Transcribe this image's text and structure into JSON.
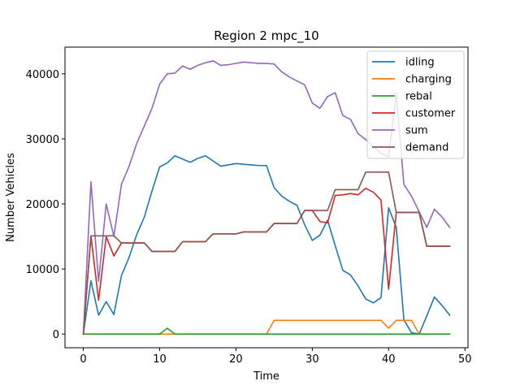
{
  "chart_data": {
    "type": "line",
    "title": "Region 2 mpc_10",
    "xlabel": "Time",
    "ylabel": "Number Vehicles",
    "xlim": [
      -2.4,
      50.4
    ],
    "ylim": [
      -2100,
      44100
    ],
    "xticks": [
      0,
      10,
      20,
      30,
      40,
      50
    ],
    "yticks": [
      0,
      10000,
      20000,
      30000,
      40000
    ],
    "grid": false,
    "legend_position": "top-right",
    "x": [
      0,
      1,
      2,
      3,
      4,
      5,
      6,
      7,
      8,
      9,
      10,
      11,
      12,
      13,
      14,
      15,
      16,
      17,
      18,
      19,
      20,
      21,
      22,
      23,
      24,
      25,
      26,
      27,
      28,
      29,
      30,
      31,
      32,
      33,
      34,
      35,
      36,
      37,
      38,
      39,
      40,
      41,
      42,
      43,
      44,
      45,
      46,
      47,
      48
    ],
    "series": [
      {
        "name": "idling",
        "color": "#1f77b4",
        "values": [
          0,
          8200,
          2900,
          5000,
          3000,
          9000,
          11800,
          15300,
          18000,
          22000,
          25700,
          26300,
          27400,
          26900,
          26400,
          27000,
          27400,
          26600,
          25800,
          26000,
          26200,
          26100,
          26000,
          25900,
          25900,
          22500,
          21200,
          20400,
          19800,
          16800,
          14400,
          15200,
          17500,
          13600,
          9800,
          9100,
          7400,
          5400,
          4800,
          5600,
          19400,
          16400,
          2200,
          200,
          0,
          2800,
          5700,
          4400,
          2900
        ]
      },
      {
        "name": "charging",
        "color": "#ff7f0e",
        "values": [
          0,
          0,
          0,
          0,
          0,
          0,
          0,
          0,
          0,
          0,
          0,
          0,
          0,
          0,
          0,
          0,
          0,
          0,
          0,
          0,
          0,
          0,
          0,
          0,
          0,
          2100,
          2100,
          2100,
          2100,
          2100,
          2100,
          2100,
          2100,
          2100,
          2100,
          2100,
          2100,
          2100,
          2100,
          2100,
          900,
          2100,
          2100,
          2100,
          0,
          0,
          0,
          0,
          0
        ]
      },
      {
        "name": "rebal",
        "color": "#2ca02c",
        "values": [
          0,
          0,
          0,
          0,
          0,
          0,
          0,
          0,
          0,
          0,
          0,
          900,
          0,
          0,
          0,
          0,
          0,
          0,
          0,
          0,
          0,
          0,
          0,
          0,
          0,
          0,
          0,
          0,
          0,
          0,
          0,
          0,
          0,
          0,
          0,
          0,
          0,
          0,
          0,
          0,
          0,
          0,
          0,
          0,
          0,
          0,
          0,
          0,
          0
        ]
      },
      {
        "name": "customer",
        "color": "#d62728",
        "values": [
          0,
          15100,
          5200,
          15000,
          12000,
          14000,
          14000,
          14000,
          14000,
          12700,
          12700,
          12700,
          12700,
          14200,
          14200,
          14200,
          14200,
          15400,
          15400,
          15400,
          15400,
          15700,
          15700,
          15700,
          15700,
          17000,
          17000,
          17000,
          17000,
          19000,
          19000,
          17300,
          17100,
          21300,
          21400,
          21600,
          21400,
          22400,
          21800,
          20600,
          6900,
          18700,
          18700,
          18700,
          18700,
          13500,
          13500,
          13500,
          13500
        ]
      },
      {
        "name": "sum",
        "color": "#9467bd",
        "values": [
          0,
          23400,
          8100,
          20000,
          15000,
          23000,
          25800,
          29300,
          32000,
          34700,
          38400,
          40000,
          40100,
          41200,
          40700,
          41300,
          41700,
          42000,
          41300,
          41400,
          41600,
          41800,
          41700,
          41600,
          41600,
          41500,
          40300,
          39500,
          38900,
          38300,
          35500,
          34700,
          36500,
          37100,
          33600,
          33000,
          30800,
          29900,
          28800,
          27800,
          27200,
          37000,
          23000,
          21200,
          18800,
          16400,
          19200,
          18000,
          16400
        ]
      },
      {
        "name": "demand",
        "color": "#8c564b",
        "values": [
          0,
          15100,
          15100,
          15100,
          15100,
          14000,
          14000,
          14000,
          14000,
          12700,
          12700,
          12700,
          12700,
          14200,
          14200,
          14200,
          14200,
          15400,
          15400,
          15400,
          15400,
          15700,
          15700,
          15700,
          15700,
          17000,
          17000,
          17000,
          17000,
          19000,
          19000,
          19000,
          19000,
          22200,
          22200,
          22200,
          22200,
          24900,
          24900,
          24900,
          24900,
          18700,
          18700,
          18700,
          18700,
          13500,
          13500,
          13500,
          13500
        ]
      }
    ]
  }
}
